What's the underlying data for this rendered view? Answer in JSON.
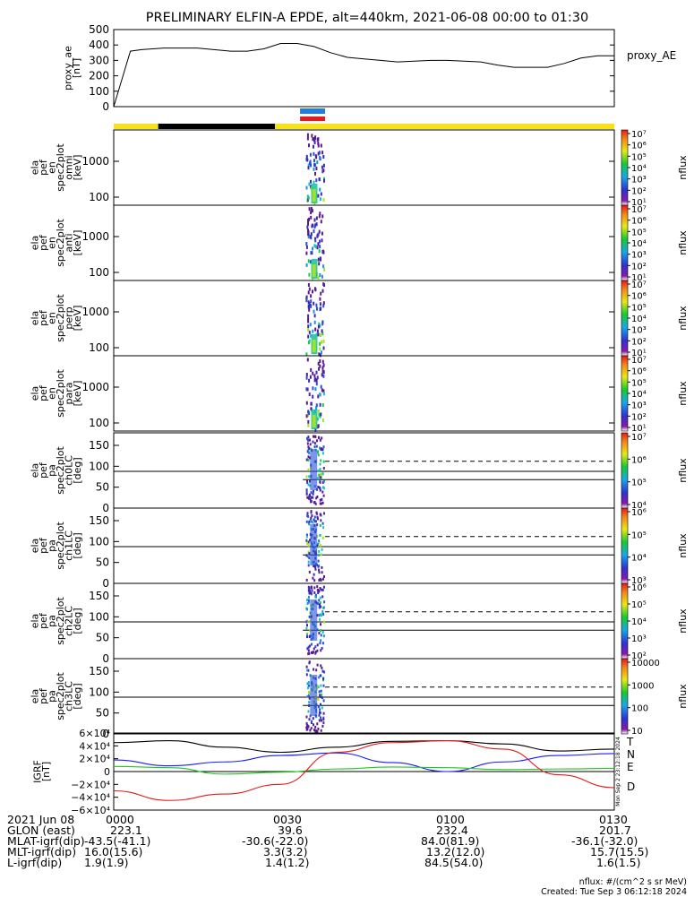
{
  "title": "PRELIMINARY ELFIN-A EPDE, alt=440km, 2021-06-08 00:00 to 01:30",
  "colors": {
    "yellow": "#f5e21a",
    "black": "#000000",
    "blue": "#1e7fe0",
    "red": "#e21b1b",
    "grf_T": "#000000",
    "grf_N": "#1a1aff",
    "grf_E": "#1ec81e",
    "grf_D": "#e21b1b"
  },
  "status_bars": {
    "main": [
      {
        "from": "00:00",
        "to": "00:08",
        "color": "yellow"
      },
      {
        "from": "00:08",
        "to": "00:29",
        "color": "black"
      },
      {
        "from": "00:29",
        "to": "01:30",
        "color": "yellow"
      }
    ],
    "blue_marker": {
      "from": "00:33.5",
      "to": "00:38"
    },
    "red_marker": {
      "from": "00:33.5",
      "to": "00:38"
    }
  },
  "panels": {
    "ae": {
      "ylabel": [
        "proxy_ae",
        "[nT]"
      ],
      "ticks": [
        "500",
        "400",
        "300",
        "200",
        "100",
        "0"
      ],
      "legend": "proxy_AE"
    },
    "spec": [
      {
        "ylabel": [
          "ela",
          "pef",
          "en",
          "spec2plot",
          "omni",
          "[keV]"
        ],
        "ticks": [
          "1000",
          "100"
        ]
      },
      {
        "ylabel": [
          "ela",
          "pef",
          "en",
          "spec2plot",
          "anti",
          "[keV]"
        ],
        "ticks": [
          "1000",
          "100"
        ]
      },
      {
        "ylabel": [
          "ela",
          "pef",
          "en",
          "spec2plot",
          "perp",
          "[keV]"
        ],
        "ticks": [
          "1000",
          "100"
        ]
      },
      {
        "ylabel": [
          "ela",
          "pef",
          "en",
          "spec2plot",
          "para",
          "[keV]"
        ],
        "ticks": [
          "1000",
          "100"
        ]
      }
    ],
    "pa": [
      {
        "ylabel": [
          "ela",
          "pef",
          "pa",
          "spec2plot",
          "ch0LC",
          "[deg]"
        ],
        "ticks": [
          "150",
          "100",
          "50",
          "0"
        ]
      },
      {
        "ylabel": [
          "ela",
          "pef",
          "pa",
          "spec2plot",
          "ch1LC",
          "[deg]"
        ],
        "ticks": [
          "150",
          "100",
          "50",
          "0"
        ]
      },
      {
        "ylabel": [
          "ela",
          "pef",
          "pa",
          "spec2plot",
          "ch2LC",
          "[deg]"
        ],
        "ticks": [
          "150",
          "100",
          "50",
          "0"
        ]
      },
      {
        "ylabel": [
          "ela",
          "pef",
          "pa",
          "spec2plot",
          "ch3LC",
          "[deg]"
        ],
        "ticks": [
          "150",
          "100",
          "50",
          "0"
        ]
      }
    ],
    "grf": {
      "ylabel": [
        "IGRF",
        "[nT]"
      ],
      "ticks": [
        "6×10⁴",
        "4×10⁴",
        "2×10⁴",
        "0",
        "−2×10⁴",
        "−4×10⁴",
        "−6×10⁴"
      ],
      "legend": [
        "T",
        "N",
        "E",
        "D"
      ]
    }
  },
  "colorbars": {
    "c1": {
      "label": "nflux",
      "ticks": [
        "10⁷",
        "10⁶",
        "10⁵",
        "10⁴",
        "10³",
        "10²",
        "10¹"
      ]
    },
    "c2": {
      "label": "nflux",
      "ticks": [
        "10⁷",
        "10⁶",
        "10⁵",
        "10⁴",
        "10³",
        "10²",
        "10¹"
      ]
    },
    "c3": {
      "label": "nflux",
      "ticks": [
        "10⁷",
        "10⁶",
        "10⁵",
        "10⁴",
        "10³",
        "10²",
        "10¹"
      ]
    },
    "c4": {
      "label": "nflux",
      "ticks": [
        "10⁷",
        "10⁶",
        "10⁵",
        "10⁴",
        "10³",
        "10²",
        "10¹"
      ]
    },
    "c5": {
      "label": "nflux",
      "ticks": [
        "10⁷",
        "10⁶",
        "10⁵",
        "10⁴"
      ]
    },
    "c6": {
      "label": "nflux",
      "ticks": [
        "10⁶",
        "10⁵",
        "10⁴",
        "10³"
      ]
    },
    "c7": {
      "label": "nflux",
      "ticks": [
        "10⁶",
        "10⁵",
        "10⁴",
        "10³",
        "10²"
      ]
    },
    "c8": {
      "label": "nflux",
      "ticks": [
        "10000",
        "1000",
        "100",
        "10"
      ]
    }
  },
  "side_stamp": "Mon Sep  2 23:12:18 2024",
  "chart_data": [
    {
      "type": "line",
      "series": [
        {
          "name": "proxy_AE",
          "x": [
            "00:00",
            "00:01",
            "00:03",
            "00:05",
            "00:09",
            "00:12",
            "00:15",
            "00:18",
            "00:21",
            "00:24",
            "00:27",
            "00:30",
            "00:33",
            "00:36",
            "00:39",
            "00:42",
            "00:45",
            "00:48",
            "00:51",
            "00:54",
            "00:57",
            "01:00",
            "01:03",
            "01:06",
            "01:09",
            "01:12",
            "01:15",
            "01:18",
            "01:21",
            "01:24",
            "01:27",
            "01:30"
          ],
          "values": [
            0,
            120,
            360,
            370,
            380,
            380,
            380,
            370,
            360,
            360,
            375,
            410,
            410,
            390,
            350,
            320,
            310,
            300,
            290,
            295,
            300,
            300,
            295,
            290,
            270,
            255,
            255,
            255,
            280,
            315,
            330,
            330
          ]
        }
      ],
      "ylim": [
        0,
        500
      ],
      "ylabel": "proxy_ae [nT]"
    },
    {
      "type": "line",
      "series": [
        {
          "name": "T",
          "x": [
            "00:00",
            "00:10",
            "00:20",
            "00:30",
            "00:40",
            "00:50",
            "01:00",
            "01:10",
            "01:20",
            "01:30"
          ],
          "values": [
            45000,
            48000,
            38000,
            30000,
            38000,
            47000,
            48000,
            43000,
            32000,
            35000
          ]
        },
        {
          "name": "N",
          "x": [
            "00:00",
            "00:10",
            "00:20",
            "00:30",
            "00:40",
            "00:50",
            "01:00",
            "01:10",
            "01:20",
            "01:30"
          ],
          "values": [
            18000,
            9000,
            15000,
            25000,
            29000,
            14000,
            0,
            15000,
            25000,
            28000
          ]
        },
        {
          "name": "E",
          "x": [
            "00:00",
            "00:10",
            "00:20",
            "00:30",
            "00:40",
            "00:50",
            "01:00",
            "01:10",
            "01:20",
            "01:30"
          ],
          "values": [
            8000,
            6000,
            -4000,
            -1000,
            4000,
            7000,
            6000,
            3000,
            4000,
            5000
          ]
        },
        {
          "name": "D",
          "x": [
            "00:00",
            "00:10",
            "00:20",
            "00:30",
            "00:40",
            "00:50",
            "01:00",
            "01:10",
            "01:20",
            "01:30"
          ],
          "values": [
            -30000,
            -45000,
            -35000,
            -20000,
            30000,
            45000,
            48000,
            35000,
            -5000,
            -25000
          ]
        }
      ],
      "ylim": [
        -60000,
        60000
      ],
      "ylabel": "IGRF [nT]"
    }
  ],
  "footer": {
    "labels": [
      "2021 Jun 08",
      "GLON (east)",
      "MLAT-igrf(dip)",
      "MLT-igrf(dip)",
      "L-igrf(dip)"
    ],
    "cols": [
      [
        "0000",
        "223.1",
        "-43.5(-41.1)",
        "16.0(15.6)",
        "1.9(1.9)"
      ],
      [
        "0030",
        "39.6",
        "-30.6(-22.0)",
        "3.3(3.2)",
        "1.4(1.2)"
      ],
      [
        "0100",
        "232.4",
        "84.0(81.9)",
        "13.2(12.0)",
        "84.5(54.0)"
      ],
      [
        "0130",
        "201.7",
        "-36.1(-32.0)",
        "15.7(15.5)",
        "1.6(1.5)"
      ]
    ],
    "units": "nflux: #/(cm^2 s sr MeV)",
    "created": "Created: Tue Sep  3 06:12:18 2024"
  }
}
